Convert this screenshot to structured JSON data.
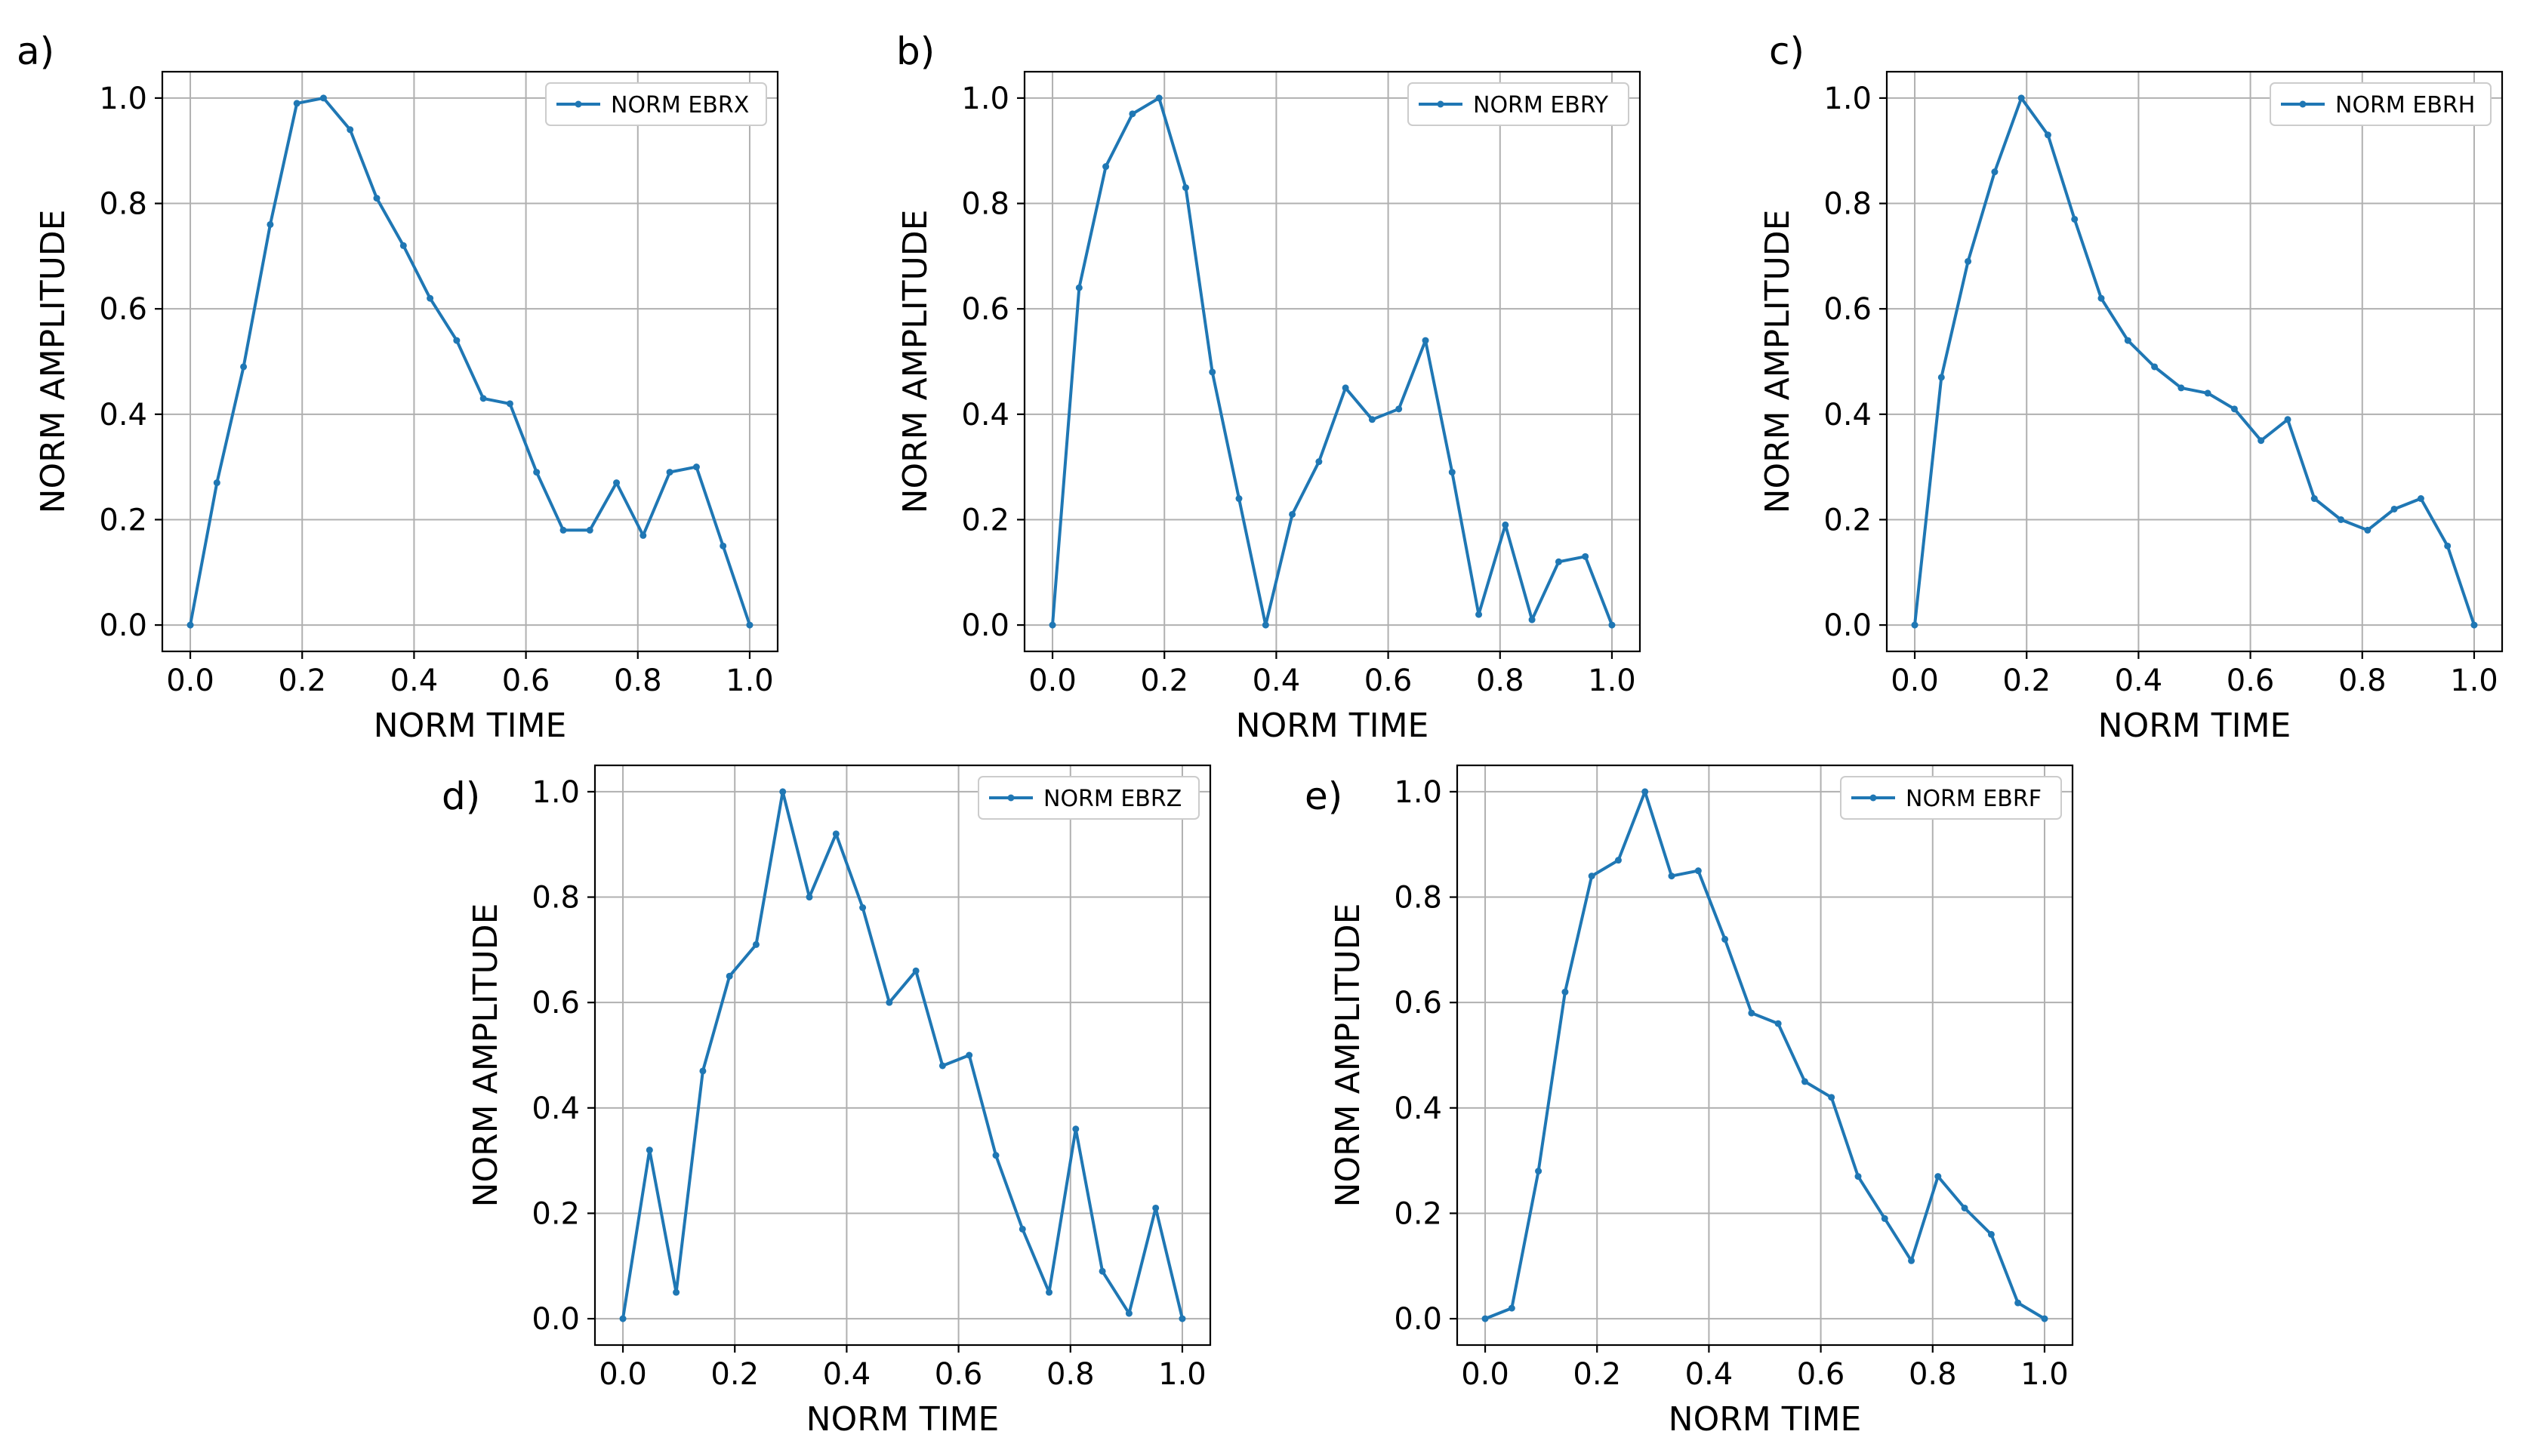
{
  "figure": {
    "colors": {
      "series": "#1f77b4",
      "grid": "#b0b0b0",
      "axis": "#000000"
    }
  },
  "chart_data": [
    {
      "panel": "a)",
      "type": "line",
      "title": "",
      "xlabel": "NORM TIME",
      "ylabel": "NORM AMPLITUDE",
      "xlim": [
        0.0,
        1.0
      ],
      "ylim": [
        0.0,
        1.0
      ],
      "xticks": [
        "0.0",
        "0.2",
        "0.4",
        "0.6",
        "0.8",
        "1.0"
      ],
      "yticks": [
        "0.0",
        "0.2",
        "0.4",
        "0.6",
        "0.8",
        "1.0"
      ],
      "grid": true,
      "legend_position": "top-right",
      "series": [
        {
          "name": "NORM EBRX",
          "x": [
            0.0,
            0.0476,
            0.0952,
            0.1429,
            0.1905,
            0.2381,
            0.2857,
            0.3333,
            0.381,
            0.4286,
            0.4762,
            0.5238,
            0.5714,
            0.619,
            0.6667,
            0.7143,
            0.7619,
            0.8095,
            0.8571,
            0.9048,
            0.9524,
            1.0
          ],
          "y": [
            0.0,
            0.27,
            0.49,
            0.76,
            0.99,
            1.0,
            0.94,
            0.81,
            0.72,
            0.62,
            0.54,
            0.43,
            0.42,
            0.29,
            0.18,
            0.18,
            0.27,
            0.17,
            0.29,
            0.3,
            0.15,
            0.0
          ]
        }
      ]
    },
    {
      "panel": "b)",
      "type": "line",
      "title": "",
      "xlabel": "NORM TIME",
      "ylabel": "NORM AMPLITUDE",
      "xlim": [
        0.0,
        1.0
      ],
      "ylim": [
        0.0,
        1.0
      ],
      "xticks": [
        "0.0",
        "0.2",
        "0.4",
        "0.6",
        "0.8",
        "1.0"
      ],
      "yticks": [
        "0.0",
        "0.2",
        "0.4",
        "0.6",
        "0.8",
        "1.0"
      ],
      "grid": true,
      "legend_position": "top-right",
      "series": [
        {
          "name": "NORM EBRY",
          "x": [
            0.0,
            0.0476,
            0.0952,
            0.1429,
            0.1905,
            0.2381,
            0.2857,
            0.3333,
            0.381,
            0.4286,
            0.4762,
            0.5238,
            0.5714,
            0.619,
            0.6667,
            0.7143,
            0.7619,
            0.8095,
            0.8571,
            0.9048,
            0.9524,
            1.0
          ],
          "y": [
            0.0,
            0.64,
            0.87,
            0.97,
            1.0,
            0.83,
            0.48,
            0.24,
            0.0,
            0.21,
            0.31,
            0.45,
            0.39,
            0.41,
            0.54,
            0.29,
            0.02,
            0.19,
            0.01,
            0.12,
            0.13,
            0.0
          ]
        }
      ]
    },
    {
      "panel": "c)",
      "type": "line",
      "title": "",
      "xlabel": "NORM TIME",
      "ylabel": "NORM AMPLITUDE",
      "xlim": [
        0.0,
        1.0
      ],
      "ylim": [
        0.0,
        1.0
      ],
      "xticks": [
        "0.0",
        "0.2",
        "0.4",
        "0.6",
        "0.8",
        "1.0"
      ],
      "yticks": [
        "0.0",
        "0.2",
        "0.4",
        "0.6",
        "0.8",
        "1.0"
      ],
      "grid": true,
      "legend_position": "top-right",
      "series": [
        {
          "name": "NORM EBRH",
          "x": [
            0.0,
            0.0476,
            0.0952,
            0.1429,
            0.1905,
            0.2381,
            0.2857,
            0.3333,
            0.381,
            0.4286,
            0.4762,
            0.5238,
            0.5714,
            0.619,
            0.6667,
            0.7143,
            0.7619,
            0.8095,
            0.8571,
            0.9048,
            0.9524,
            1.0
          ],
          "y": [
            0.0,
            0.47,
            0.69,
            0.86,
            1.0,
            0.93,
            0.77,
            0.62,
            0.54,
            0.49,
            0.45,
            0.44,
            0.41,
            0.35,
            0.39,
            0.24,
            0.2,
            0.18,
            0.22,
            0.24,
            0.15,
            0.0
          ]
        }
      ]
    },
    {
      "panel": "d)",
      "type": "line",
      "title": "",
      "xlabel": "NORM TIME",
      "ylabel": "NORM AMPLITUDE",
      "xlim": [
        0.0,
        1.0
      ],
      "ylim": [
        0.0,
        1.0
      ],
      "xticks": [
        "0.0",
        "0.2",
        "0.4",
        "0.6",
        "0.8",
        "1.0"
      ],
      "yticks": [
        "0.0",
        "0.2",
        "0.4",
        "0.6",
        "0.8",
        "1.0"
      ],
      "grid": true,
      "legend_position": "top-right",
      "series": [
        {
          "name": "NORM EBRZ",
          "x": [
            0.0,
            0.0476,
            0.0952,
            0.1429,
            0.1905,
            0.2381,
            0.2857,
            0.3333,
            0.381,
            0.4286,
            0.4762,
            0.5238,
            0.5714,
            0.619,
            0.6667,
            0.7143,
            0.7619,
            0.8095,
            0.8571,
            0.9048,
            0.9524,
            1.0
          ],
          "y": [
            0.0,
            0.32,
            0.05,
            0.47,
            0.65,
            0.71,
            1.0,
            0.8,
            0.92,
            0.78,
            0.6,
            0.66,
            0.48,
            0.5,
            0.31,
            0.17,
            0.05,
            0.36,
            0.09,
            0.01,
            0.21,
            0.0
          ]
        }
      ]
    },
    {
      "panel": "e)",
      "type": "line",
      "title": "",
      "xlabel": "NORM TIME",
      "ylabel": "NORM AMPLITUDE",
      "xlim": [
        0.0,
        1.0
      ],
      "ylim": [
        0.0,
        1.0
      ],
      "xticks": [
        "0.0",
        "0.2",
        "0.4",
        "0.6",
        "0.8",
        "1.0"
      ],
      "yticks": [
        "0.0",
        "0.2",
        "0.4",
        "0.6",
        "0.8",
        "1.0"
      ],
      "grid": true,
      "legend_position": "top-right",
      "series": [
        {
          "name": "NORM EBRF",
          "x": [
            0.0,
            0.0476,
            0.0952,
            0.1429,
            0.1905,
            0.2381,
            0.2857,
            0.3333,
            0.381,
            0.4286,
            0.4762,
            0.5238,
            0.5714,
            0.619,
            0.6667,
            0.7143,
            0.7619,
            0.8095,
            0.8571,
            0.9048,
            0.9524,
            1.0
          ],
          "y": [
            0.0,
            0.02,
            0.28,
            0.62,
            0.84,
            0.87,
            1.0,
            0.84,
            0.85,
            0.72,
            0.58,
            0.56,
            0.45,
            0.42,
            0.27,
            0.19,
            0.11,
            0.27,
            0.21,
            0.16,
            0.03,
            0.0
          ]
        }
      ]
    }
  ]
}
